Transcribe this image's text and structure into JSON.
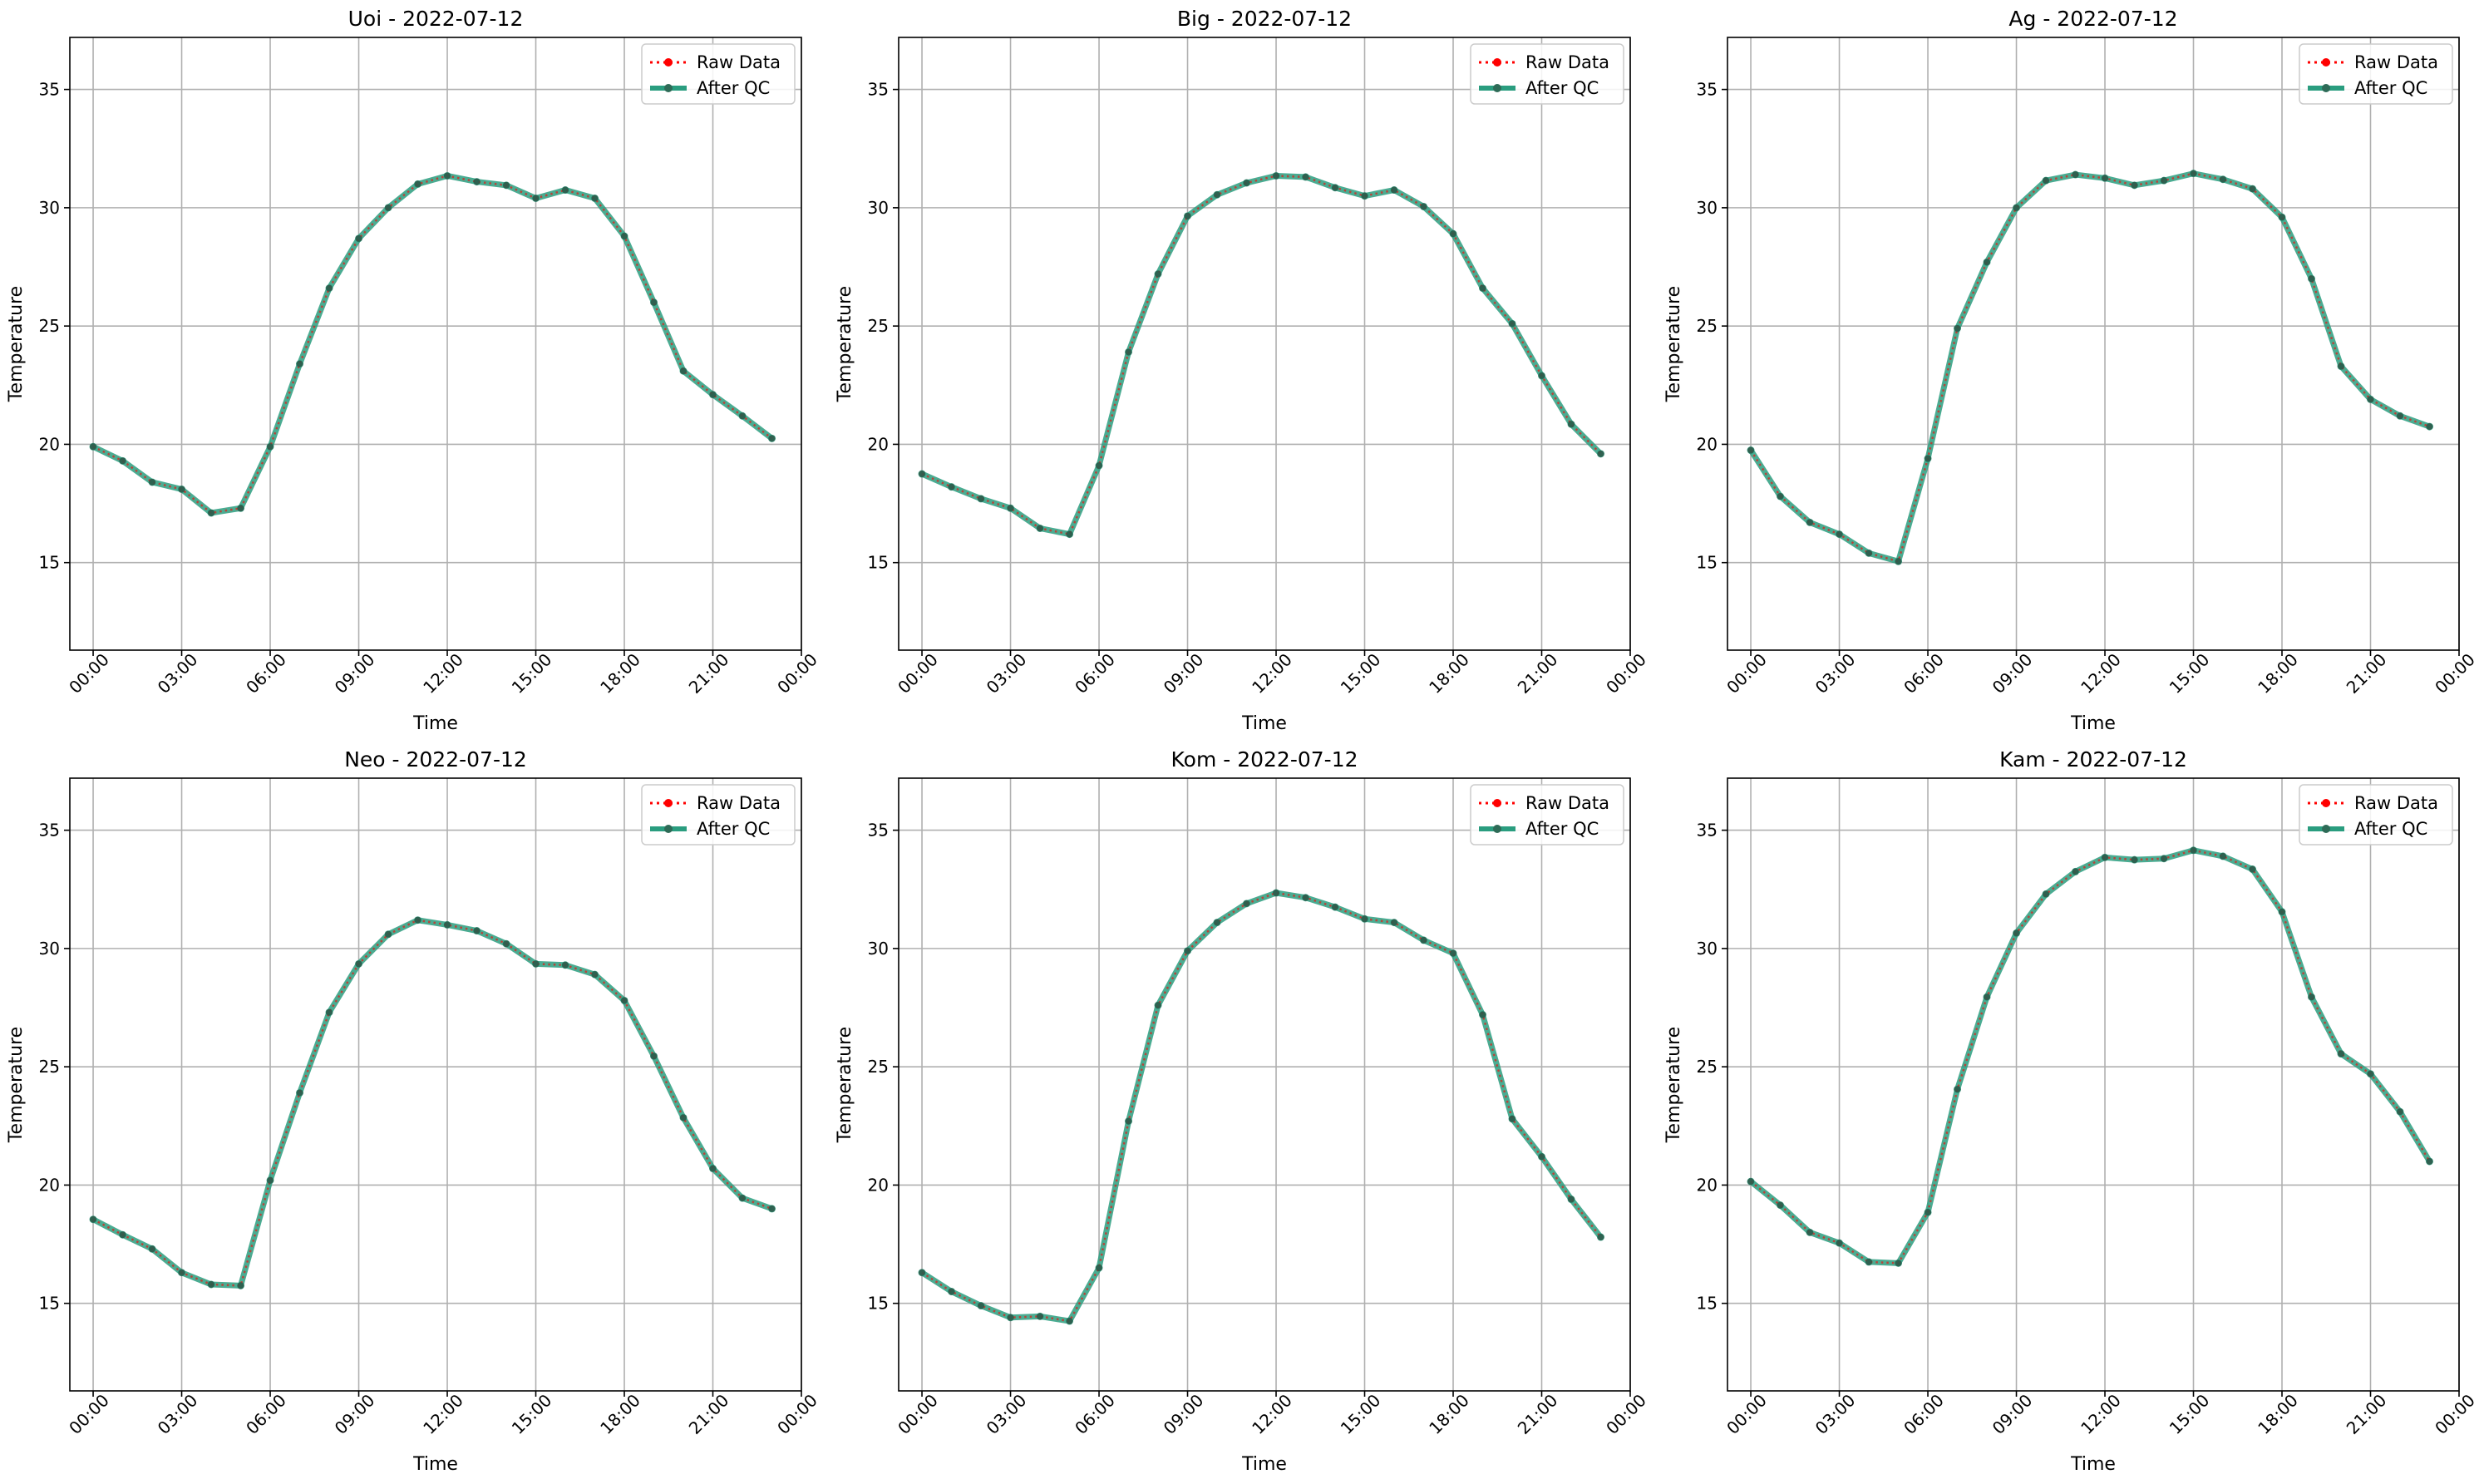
{
  "figure": {
    "background": "#ffffff"
  },
  "chart_data": [
    {
      "type": "line",
      "title": "Uoi - 2022-07-12",
      "xlabel": "Time",
      "ylabel": "Temperature",
      "x": [
        "00:00",
        "01:00",
        "02:00",
        "03:00",
        "04:00",
        "05:00",
        "06:00",
        "07:00",
        "08:00",
        "09:00",
        "10:00",
        "11:00",
        "12:00",
        "13:00",
        "14:00",
        "15:00",
        "16:00",
        "17:00",
        "18:00",
        "19:00",
        "20:00",
        "21:00",
        "22:00",
        "23:00"
      ],
      "xticks": [
        "00:00",
        "03:00",
        "06:00",
        "09:00",
        "12:00",
        "15:00",
        "18:00",
        "21:00",
        "00:00"
      ],
      "yticks": [
        "15",
        "20",
        "25",
        "30",
        "35"
      ],
      "ylim": [
        11.3,
        37.2
      ],
      "grid": true,
      "legend": "top-right",
      "series": [
        {
          "name": "Raw Data",
          "color": "#ff0000",
          "style": "dotted",
          "marker": "circle",
          "values": [
            19.9,
            19.3,
            18.4,
            18.1,
            17.1,
            17.3,
            19.9,
            23.4,
            26.6,
            28.7,
            30.0,
            31.0,
            31.35,
            31.1,
            30.95,
            30.4,
            30.75,
            30.4,
            28.8,
            26.0,
            23.1,
            22.1,
            21.2,
            20.25
          ]
        },
        {
          "name": "After QC",
          "color": "#2a9d7f",
          "style": "solid",
          "marker": "circle",
          "values": [
            19.9,
            19.3,
            18.4,
            18.1,
            17.1,
            17.3,
            19.9,
            23.4,
            26.6,
            28.7,
            30.0,
            31.0,
            31.35,
            31.1,
            30.95,
            30.4,
            30.75,
            30.4,
            28.8,
            26.0,
            23.1,
            22.1,
            21.2,
            20.25
          ]
        }
      ]
    },
    {
      "type": "line",
      "title": "Big - 2022-07-12",
      "xlabel": "Time",
      "ylabel": "Temperature",
      "x": [
        "00:00",
        "01:00",
        "02:00",
        "03:00",
        "04:00",
        "05:00",
        "06:00",
        "07:00",
        "08:00",
        "09:00",
        "10:00",
        "11:00",
        "12:00",
        "13:00",
        "14:00",
        "15:00",
        "16:00",
        "17:00",
        "18:00",
        "19:00",
        "20:00",
        "21:00",
        "22:00",
        "23:00"
      ],
      "xticks": [
        "00:00",
        "03:00",
        "06:00",
        "09:00",
        "12:00",
        "15:00",
        "18:00",
        "21:00",
        "00:00"
      ],
      "yticks": [
        "15",
        "20",
        "25",
        "30",
        "35"
      ],
      "ylim": [
        11.3,
        37.2
      ],
      "grid": true,
      "legend": "top-right",
      "series": [
        {
          "name": "Raw Data",
          "color": "#ff0000",
          "style": "dotted",
          "marker": "circle",
          "values": [
            18.75,
            18.2,
            17.7,
            17.3,
            16.45,
            16.2,
            19.1,
            23.9,
            27.2,
            29.65,
            30.55,
            31.05,
            31.35,
            31.3,
            30.85,
            30.5,
            30.75,
            30.05,
            28.9,
            26.6,
            25.1,
            22.9,
            20.85,
            19.6
          ]
        },
        {
          "name": "After QC",
          "color": "#2a9d7f",
          "style": "solid",
          "marker": "circle",
          "values": [
            18.75,
            18.2,
            17.7,
            17.3,
            16.45,
            16.2,
            19.1,
            23.9,
            27.2,
            29.65,
            30.55,
            31.05,
            31.35,
            31.3,
            30.85,
            30.5,
            30.75,
            30.05,
            28.9,
            26.6,
            25.1,
            22.9,
            20.85,
            19.6
          ]
        }
      ]
    },
    {
      "type": "line",
      "title": "Ag - 2022-07-12",
      "xlabel": "Time",
      "ylabel": "Temperature",
      "x": [
        "00:00",
        "01:00",
        "02:00",
        "03:00",
        "04:00",
        "05:00",
        "06:00",
        "07:00",
        "08:00",
        "09:00",
        "10:00",
        "11:00",
        "12:00",
        "13:00",
        "14:00",
        "15:00",
        "16:00",
        "17:00",
        "18:00",
        "19:00",
        "20:00",
        "21:00",
        "22:00",
        "23:00"
      ],
      "xticks": [
        "00:00",
        "03:00",
        "06:00",
        "09:00",
        "12:00",
        "15:00",
        "18:00",
        "21:00",
        "00:00"
      ],
      "yticks": [
        "15",
        "20",
        "25",
        "30",
        "35"
      ],
      "ylim": [
        11.3,
        37.2
      ],
      "grid": true,
      "legend": "top-right",
      "series": [
        {
          "name": "Raw Data",
          "color": "#ff0000",
          "style": "dotted",
          "marker": "circle",
          "values": [
            19.75,
            17.8,
            16.7,
            16.2,
            15.4,
            15.05,
            19.4,
            24.9,
            27.7,
            30.0,
            31.15,
            31.4,
            31.25,
            30.95,
            31.15,
            31.45,
            31.2,
            30.8,
            29.6,
            27.0,
            23.3,
            21.9,
            21.2,
            20.75
          ]
        },
        {
          "name": "After QC",
          "color": "#2a9d7f",
          "style": "solid",
          "marker": "circle",
          "values": [
            19.75,
            17.8,
            16.7,
            16.2,
            15.4,
            15.05,
            19.4,
            24.9,
            27.7,
            30.0,
            31.15,
            31.4,
            31.25,
            30.95,
            31.15,
            31.45,
            31.2,
            30.8,
            29.6,
            27.0,
            23.3,
            21.9,
            21.2,
            20.75
          ]
        }
      ]
    },
    {
      "type": "line",
      "title": "Neo - 2022-07-12",
      "xlabel": "Time",
      "ylabel": "Temperature",
      "x": [
        "00:00",
        "01:00",
        "02:00",
        "03:00",
        "04:00",
        "05:00",
        "06:00",
        "07:00",
        "08:00",
        "09:00",
        "10:00",
        "11:00",
        "12:00",
        "13:00",
        "14:00",
        "15:00",
        "16:00",
        "17:00",
        "18:00",
        "19:00",
        "20:00",
        "21:00",
        "22:00",
        "23:00"
      ],
      "xticks": [
        "00:00",
        "03:00",
        "06:00",
        "09:00",
        "12:00",
        "15:00",
        "18:00",
        "21:00",
        "00:00"
      ],
      "yticks": [
        "15",
        "20",
        "25",
        "30",
        "35"
      ],
      "ylim": [
        11.3,
        37.2
      ],
      "grid": true,
      "legend": "top-right",
      "series": [
        {
          "name": "Raw Data",
          "color": "#ff0000",
          "style": "dotted",
          "marker": "circle",
          "values": [
            18.55,
            17.9,
            17.3,
            16.3,
            15.8,
            15.75,
            20.2,
            23.9,
            27.3,
            29.35,
            30.6,
            31.2,
            31.0,
            30.75,
            30.2,
            29.35,
            29.3,
            28.9,
            27.8,
            25.45,
            22.85,
            20.7,
            19.45,
            19.0
          ]
        },
        {
          "name": "After QC",
          "color": "#2a9d7f",
          "style": "solid",
          "marker": "circle",
          "values": [
            18.55,
            17.9,
            17.3,
            16.3,
            15.8,
            15.75,
            20.2,
            23.9,
            27.3,
            29.35,
            30.6,
            31.2,
            31.0,
            30.75,
            30.2,
            29.35,
            29.3,
            28.9,
            27.8,
            25.45,
            22.85,
            20.7,
            19.45,
            19.0
          ]
        }
      ]
    },
    {
      "type": "line",
      "title": "Kom - 2022-07-12",
      "xlabel": "Time",
      "ylabel": "Temperature",
      "x": [
        "00:00",
        "01:00",
        "02:00",
        "03:00",
        "04:00",
        "05:00",
        "06:00",
        "07:00",
        "08:00",
        "09:00",
        "10:00",
        "11:00",
        "12:00",
        "13:00",
        "14:00",
        "15:00",
        "16:00",
        "17:00",
        "18:00",
        "19:00",
        "20:00",
        "21:00",
        "22:00",
        "23:00"
      ],
      "xticks": [
        "00:00",
        "03:00",
        "06:00",
        "09:00",
        "12:00",
        "15:00",
        "18:00",
        "21:00",
        "00:00"
      ],
      "yticks": [
        "15",
        "20",
        "25",
        "30",
        "35"
      ],
      "ylim": [
        11.3,
        37.2
      ],
      "grid": true,
      "legend": "top-right",
      "series": [
        {
          "name": "Raw Data",
          "color": "#ff0000",
          "style": "dotted",
          "marker": "circle",
          "values": [
            16.3,
            15.5,
            14.9,
            14.4,
            14.45,
            14.25,
            16.5,
            22.7,
            27.6,
            29.9,
            31.1,
            31.9,
            32.35,
            32.15,
            31.75,
            31.25,
            31.1,
            30.35,
            29.8,
            27.2,
            22.8,
            21.2,
            19.4,
            17.8
          ]
        },
        {
          "name": "After QC",
          "color": "#2a9d7f",
          "style": "solid",
          "marker": "circle",
          "values": [
            16.3,
            15.5,
            14.9,
            14.4,
            14.45,
            14.25,
            16.5,
            22.7,
            27.6,
            29.9,
            31.1,
            31.9,
            32.35,
            32.15,
            31.75,
            31.25,
            31.1,
            30.35,
            29.8,
            27.2,
            22.8,
            21.2,
            19.4,
            17.8
          ]
        }
      ]
    },
    {
      "type": "line",
      "title": "Kam - 2022-07-12",
      "xlabel": "Time",
      "ylabel": "Temperature",
      "x": [
        "00:00",
        "01:00",
        "02:00",
        "03:00",
        "04:00",
        "05:00",
        "06:00",
        "07:00",
        "08:00",
        "09:00",
        "10:00",
        "11:00",
        "12:00",
        "13:00",
        "14:00",
        "15:00",
        "16:00",
        "17:00",
        "18:00",
        "19:00",
        "20:00",
        "21:00",
        "22:00",
        "23:00"
      ],
      "xticks": [
        "00:00",
        "03:00",
        "06:00",
        "09:00",
        "12:00",
        "15:00",
        "18:00",
        "21:00",
        "00:00"
      ],
      "yticks": [
        "15",
        "20",
        "25",
        "30",
        "35"
      ],
      "ylim": [
        11.3,
        37.2
      ],
      "grid": true,
      "legend": "top-right",
      "series": [
        {
          "name": "Raw Data",
          "color": "#ff0000",
          "style": "dotted",
          "marker": "circle",
          "values": [
            20.15,
            19.15,
            18.0,
            17.55,
            16.75,
            16.7,
            18.85,
            24.05,
            27.95,
            30.65,
            32.3,
            33.25,
            33.85,
            33.75,
            33.8,
            34.15,
            33.9,
            33.35,
            31.55,
            27.95,
            25.55,
            24.7,
            23.1,
            21.0
          ]
        },
        {
          "name": "After QC",
          "color": "#2a9d7f",
          "style": "solid",
          "marker": "circle",
          "values": [
            20.15,
            19.15,
            18.0,
            17.55,
            16.75,
            16.7,
            18.85,
            24.05,
            27.95,
            30.65,
            32.3,
            33.25,
            33.85,
            33.75,
            33.8,
            34.15,
            33.9,
            33.35,
            31.55,
            27.95,
            25.55,
            24.7,
            23.1,
            21.0
          ]
        }
      ]
    }
  ]
}
